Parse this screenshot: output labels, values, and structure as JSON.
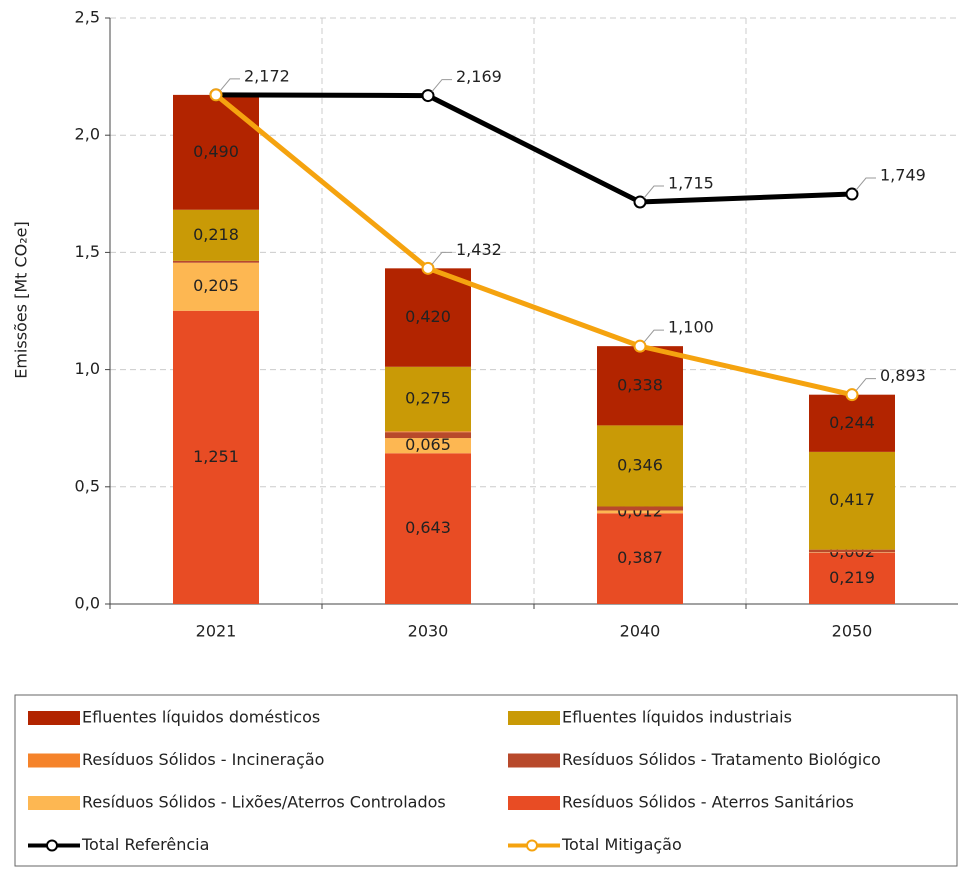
{
  "chart_data": {
    "type": "bar",
    "stacked": true,
    "ylabel": "Emissões [Mt CO₂e]",
    "categories": [
      "2021",
      "2030",
      "2040",
      "2050"
    ],
    "ylim": [
      0,
      2.5
    ],
    "yticks": [
      {
        "value": 0,
        "label": "0,0"
      },
      {
        "value": 0.5,
        "label": "0,5"
      },
      {
        "value": 1,
        "label": "1,0"
      },
      {
        "value": 1.5,
        "label": "1,5"
      },
      {
        "value": 2,
        "label": "2,0"
      },
      {
        "value": 2.5,
        "label": "2,5"
      }
    ],
    "grid": true,
    "legend": "bottom",
    "series": [
      {
        "name": "Efluentes líquidos domésticos",
        "color": "#b22400",
        "values": [
          0.49,
          0.42,
          0.338,
          0.244
        ],
        "value_labels": [
          "0,490",
          "0,420",
          "0,338",
          "0,244"
        ]
      },
      {
        "name": "Efluentes líquidos industriais",
        "color": "#c99a06",
        "values": [
          0.218,
          0.275,
          0.346,
          0.417
        ],
        "value_labels": [
          "0,218",
          "0,275",
          "0,346",
          "0,417"
        ]
      },
      {
        "name": "Resíduos Sólidos - Incineração",
        "color": "#f5832a",
        "values": [
          0,
          0.004,
          0,
          0
        ],
        "value_labels": [
          null,
          null,
          null,
          null
        ]
      },
      {
        "name": "Resíduos Sólidos - Tratamento Biológico",
        "color": "#b8492b",
        "values": [
          0.008,
          0.025,
          0.017,
          0.011
        ],
        "value_labels": [
          null,
          null,
          null,
          null
        ]
      },
      {
        "name": "Resíduos Sólidos - Lixões/Aterros Controlados",
        "color": "#fdb752",
        "values": [
          0.205,
          0.065,
          0.012,
          0.002
        ],
        "value_labels": [
          "0,205",
          "0,065",
          "0,012",
          "0,002"
        ]
      },
      {
        "name": "Resíduos Sólidos - Aterros Sanitários",
        "color": "#e84c24",
        "values": [
          1.251,
          0.643,
          0.387,
          0.219
        ],
        "value_labels": [
          "1,251",
          "0,643",
          "0,387",
          "0,219"
        ]
      },
      {
        "name": "Total Referência",
        "type": "line",
        "color": "#000000",
        "values": [
          2.172,
          2.169,
          1.715,
          1.749
        ],
        "value_labels": [
          "2,172",
          "2,169",
          "1,715",
          "1,749"
        ]
      },
      {
        "name": "Total Mitigação",
        "type": "line",
        "color": "#f5a30f",
        "values": [
          2.172,
          1.432,
          1.1,
          0.893
        ],
        "value_labels": [
          null,
          "1,432",
          "1,100",
          "0,893"
        ]
      }
    ]
  }
}
